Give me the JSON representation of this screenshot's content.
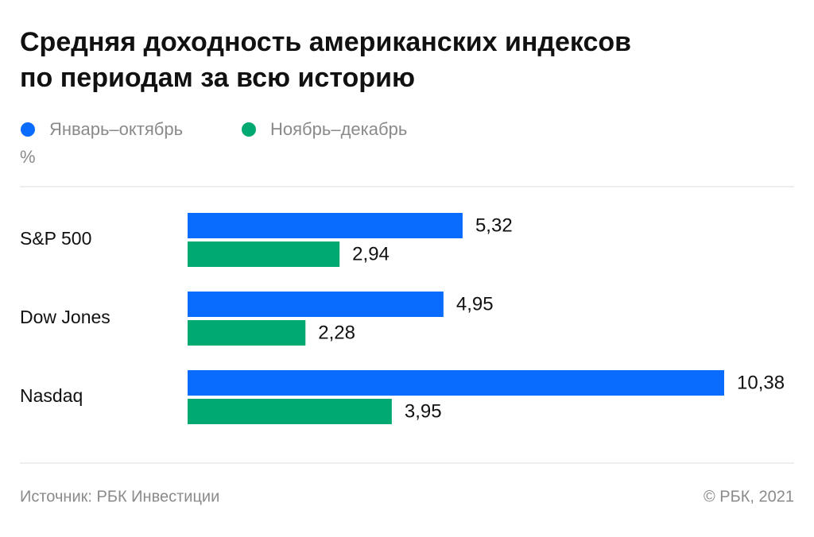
{
  "chart_data": {
    "type": "hbar",
    "title": [
      "Средняя доходность американских индексов",
      "по периодам за всю историю"
    ],
    "unit": "%",
    "categories": [
      "S&P 500",
      "Dow Jones",
      "Nasdaq"
    ],
    "series": [
      {
        "name": "Январь–октябрь",
        "color": "#0a6cff",
        "values": [
          5.32,
          4.95,
          10.38
        ],
        "value_labels": [
          "5,32",
          "4,95",
          "10,38"
        ]
      },
      {
        "name": "Ноябрь–декабрь",
        "color": "#00a872",
        "values": [
          2.94,
          2.28,
          3.95
        ],
        "value_labels": [
          "2,94",
          "2,28",
          "3,95"
        ]
      }
    ],
    "source": "Источник: РБК Инвестиции",
    "copyright": "© РБК, 2021"
  }
}
